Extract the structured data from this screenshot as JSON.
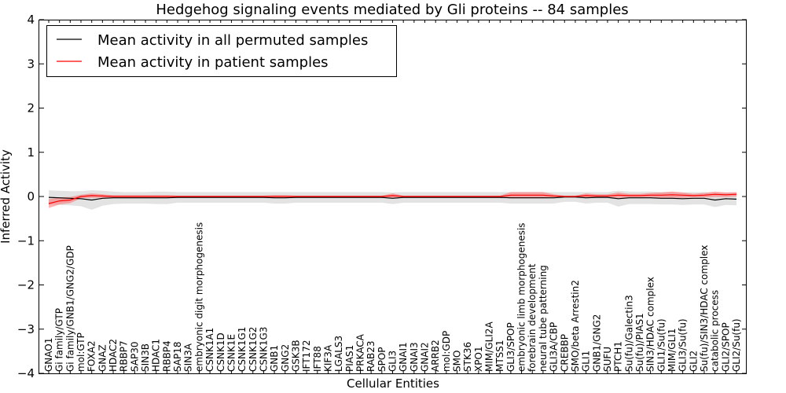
{
  "chart_data": {
    "type": "line",
    "title": "Hedgehog signaling events mediated by Gli proteins -- 84 samples",
    "xlabel": "Cellular Entities",
    "ylabel": "Inferred Activity",
    "ylim": [
      -4,
      4
    ],
    "yticks": [
      -4,
      -3,
      -2,
      -1,
      0,
      1,
      2,
      3,
      4
    ],
    "ytick_labels": [
      "−4",
      "−3",
      "−2",
      "−1",
      "0",
      "1",
      "2",
      "3",
      "4"
    ],
    "legend_position": "top-left",
    "categories": [
      "GNAO1",
      "Gi family/GTP",
      "Gi family/GNB1/GNG2/GDP",
      "mol:GTP",
      "FOXA2",
      "GNAZ",
      "HDAC2",
      "RBBP7",
      "SAP30",
      "SIN3B",
      "HDAC1",
      "RBBP4",
      "SAP18",
      "SIN3A",
      "embryonic digit morphogenesis",
      "CSNK1A1",
      "CSNK1D",
      "CSNK1E",
      "CSNK1G1",
      "CSNK1G2",
      "CSNK1G3",
      "GNB1",
      "GNG2",
      "GSK3B",
      "IFT172",
      "IFT88",
      "KIF3A",
      "LGALS3",
      "PIAS1",
      "PRKACA",
      "RAB23",
      "SPOP",
      "GLI3",
      "GNAI1",
      "GNAI3",
      "GNAI2",
      "ARRB2",
      "mol:GDP",
      "SMO",
      "STK36",
      "XPO1",
      "MIM/GLI2A",
      "MTSS1",
      "GLI3/SPOP",
      "embryonic limb morphogenesis",
      "forebrain development",
      "neural tube patterning",
      "GLI3A/CBP",
      "CREBBP",
      "SMO/beta Arrestin2",
      "GLI1",
      "GNB1/GNG2",
      "SUFU",
      "PTCH1",
      "Su(fu)/Galectin3",
      "Su(fu)/PIAS1",
      "SIN3/HDAC complex",
      "GLI1/Su(fu)",
      "MIM/GLI1",
      "GLI3/Su(fu)",
      "GLI2",
      "Su(fu)/SIN3/HDAC complex",
      "catabolic process",
      "GLI2/SPOP",
      "GLI2/Su(fu)"
    ],
    "series": [
      {
        "name": "Mean activity in all permuted samples",
        "color": "#000000",
        "values": [
          -0.02,
          -0.03,
          -0.04,
          -0.05,
          -0.08,
          -0.04,
          -0.03,
          -0.03,
          -0.03,
          -0.03,
          -0.03,
          -0.03,
          -0.02,
          -0.02,
          -0.02,
          -0.02,
          -0.02,
          -0.02,
          -0.02,
          -0.02,
          -0.02,
          -0.03,
          -0.03,
          -0.02,
          -0.02,
          -0.02,
          -0.02,
          -0.02,
          -0.02,
          -0.02,
          -0.02,
          -0.02,
          -0.04,
          -0.02,
          -0.02,
          -0.02,
          -0.02,
          -0.02,
          -0.02,
          -0.02,
          -0.02,
          -0.02,
          -0.02,
          -0.03,
          -0.03,
          -0.03,
          -0.03,
          -0.03,
          -0.01,
          -0.01,
          -0.03,
          -0.02,
          -0.02,
          -0.05,
          -0.03,
          -0.03,
          -0.03,
          -0.04,
          -0.04,
          -0.05,
          -0.04,
          -0.04,
          -0.08,
          -0.05,
          -0.06
        ],
        "band": [
          0.16,
          0.16,
          0.16,
          0.17,
          0.22,
          0.17,
          0.14,
          0.13,
          0.13,
          0.13,
          0.14,
          0.14,
          0.12,
          0.12,
          0.12,
          0.12,
          0.12,
          0.12,
          0.12,
          0.12,
          0.12,
          0.13,
          0.13,
          0.12,
          0.12,
          0.12,
          0.12,
          0.12,
          0.12,
          0.12,
          0.12,
          0.12,
          0.13,
          0.12,
          0.12,
          0.12,
          0.12,
          0.12,
          0.12,
          0.12,
          0.12,
          0.12,
          0.12,
          0.13,
          0.13,
          0.13,
          0.13,
          0.13,
          0.11,
          0.11,
          0.13,
          0.12,
          0.12,
          0.18,
          0.14,
          0.14,
          0.14,
          0.14,
          0.14,
          0.14,
          0.14,
          0.14,
          0.16,
          0.14,
          0.14
        ]
      },
      {
        "name": "Mean activity in patient samples",
        "color": "#ff0000",
        "values": [
          -0.16,
          -0.1,
          -0.08,
          0.0,
          0.02,
          0.01,
          0.0,
          0.0,
          0.0,
          0.0,
          0.0,
          0.0,
          0.0,
          0.0,
          0.0,
          0.0,
          0.0,
          0.0,
          0.0,
          0.0,
          0.0,
          0.0,
          0.0,
          0.0,
          0.0,
          0.0,
          0.0,
          0.0,
          0.0,
          0.0,
          0.0,
          0.0,
          0.02,
          0.0,
          0.0,
          0.0,
          0.0,
          0.0,
          0.0,
          0.0,
          0.0,
          0.0,
          0.0,
          0.03,
          0.03,
          0.03,
          0.03,
          0.01,
          0.0,
          0.0,
          0.02,
          0.01,
          0.01,
          0.03,
          0.02,
          0.02,
          0.03,
          0.03,
          0.04,
          0.03,
          0.02,
          0.03,
          0.05,
          0.04,
          0.05
        ],
        "band": [
          0.1,
          0.08,
          0.07,
          0.04,
          0.05,
          0.04,
          0.03,
          0.03,
          0.03,
          0.03,
          0.03,
          0.03,
          0.02,
          0.02,
          0.02,
          0.02,
          0.02,
          0.02,
          0.02,
          0.02,
          0.02,
          0.03,
          0.03,
          0.02,
          0.02,
          0.02,
          0.02,
          0.02,
          0.02,
          0.02,
          0.02,
          0.02,
          0.05,
          0.02,
          0.02,
          0.02,
          0.02,
          0.02,
          0.02,
          0.02,
          0.02,
          0.02,
          0.02,
          0.07,
          0.07,
          0.07,
          0.07,
          0.04,
          0.02,
          0.02,
          0.05,
          0.04,
          0.04,
          0.06,
          0.04,
          0.04,
          0.05,
          0.06,
          0.07,
          0.06,
          0.04,
          0.05,
          0.06,
          0.05,
          0.05
        ]
      }
    ]
  }
}
